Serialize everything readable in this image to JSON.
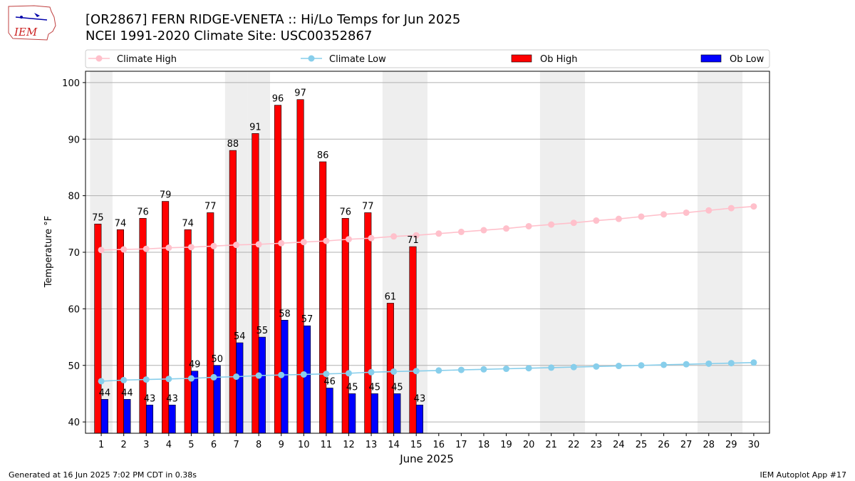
{
  "header": {
    "title_line1": "[OR2867] FERN RIDGE-VENETA :: Hi/Lo Temps for Jun 2025",
    "title_line2": "NCEI 1991-2020 Climate Site: USC00352867",
    "logo_text": "IEM"
  },
  "footer": {
    "generated": "Generated at 16 Jun 2025 7:02 PM CDT in 0.38s",
    "app": "IEM Autoplot App #17"
  },
  "colors": {
    "ob_high": "#ff0000",
    "ob_low": "#0000ff",
    "climate_high": "#ffc0cb",
    "climate_low": "#87ceeb",
    "weekend_band": "#eeeeee",
    "grid": "#b0b0b0"
  },
  "chart_data": {
    "type": "bar",
    "xlabel": "June 2025",
    "ylabel": "Temperature °F",
    "ylim": [
      38,
      102
    ],
    "yticks": [
      40,
      50,
      60,
      70,
      80,
      90,
      100
    ],
    "grid": "horizontal",
    "legend_position": "top",
    "weekend_days": [
      1,
      7,
      8,
      14,
      15,
      21,
      22,
      28,
      29
    ],
    "categories": [
      "1",
      "2",
      "3",
      "4",
      "5",
      "6",
      "7",
      "8",
      "9",
      "10",
      "11",
      "12",
      "13",
      "14",
      "15",
      "16",
      "17",
      "18",
      "19",
      "20",
      "21",
      "22",
      "23",
      "24",
      "25",
      "26",
      "27",
      "28",
      "29",
      "30"
    ],
    "series": [
      {
        "name": "Climate High",
        "kind": "line",
        "values": [
          70.4,
          70.5,
          70.6,
          70.8,
          70.9,
          71.1,
          71.3,
          71.4,
          71.6,
          71.8,
          72.0,
          72.3,
          72.5,
          72.8,
          73.0,
          73.3,
          73.6,
          73.9,
          74.2,
          74.6,
          74.9,
          75.2,
          75.6,
          75.9,
          76.3,
          76.7,
          77.0,
          77.4,
          77.8,
          78.1
        ]
      },
      {
        "name": "Climate Low",
        "kind": "line",
        "values": [
          47.2,
          47.4,
          47.5,
          47.6,
          47.7,
          47.9,
          48.0,
          48.2,
          48.3,
          48.4,
          48.5,
          48.6,
          48.8,
          48.9,
          49.0,
          49.1,
          49.2,
          49.3,
          49.4,
          49.5,
          49.6,
          49.7,
          49.8,
          49.9,
          50.0,
          50.1,
          50.2,
          50.3,
          50.4,
          50.5
        ]
      },
      {
        "name": "Ob High",
        "kind": "bar",
        "values": [
          75,
          74,
          76,
          79,
          74,
          77,
          88,
          91,
          96,
          97,
          86,
          76,
          77,
          61,
          71,
          null,
          null,
          null,
          null,
          null,
          null,
          null,
          null,
          null,
          null,
          null,
          null,
          null,
          null,
          null
        ]
      },
      {
        "name": "Ob Low",
        "kind": "bar",
        "values": [
          44,
          44,
          43,
          43,
          49,
          50,
          54,
          55,
          58,
          57,
          46,
          45,
          45,
          45,
          43,
          null,
          null,
          null,
          null,
          null,
          null,
          null,
          null,
          null,
          null,
          null,
          null,
          null,
          null,
          null
        ]
      }
    ]
  }
}
